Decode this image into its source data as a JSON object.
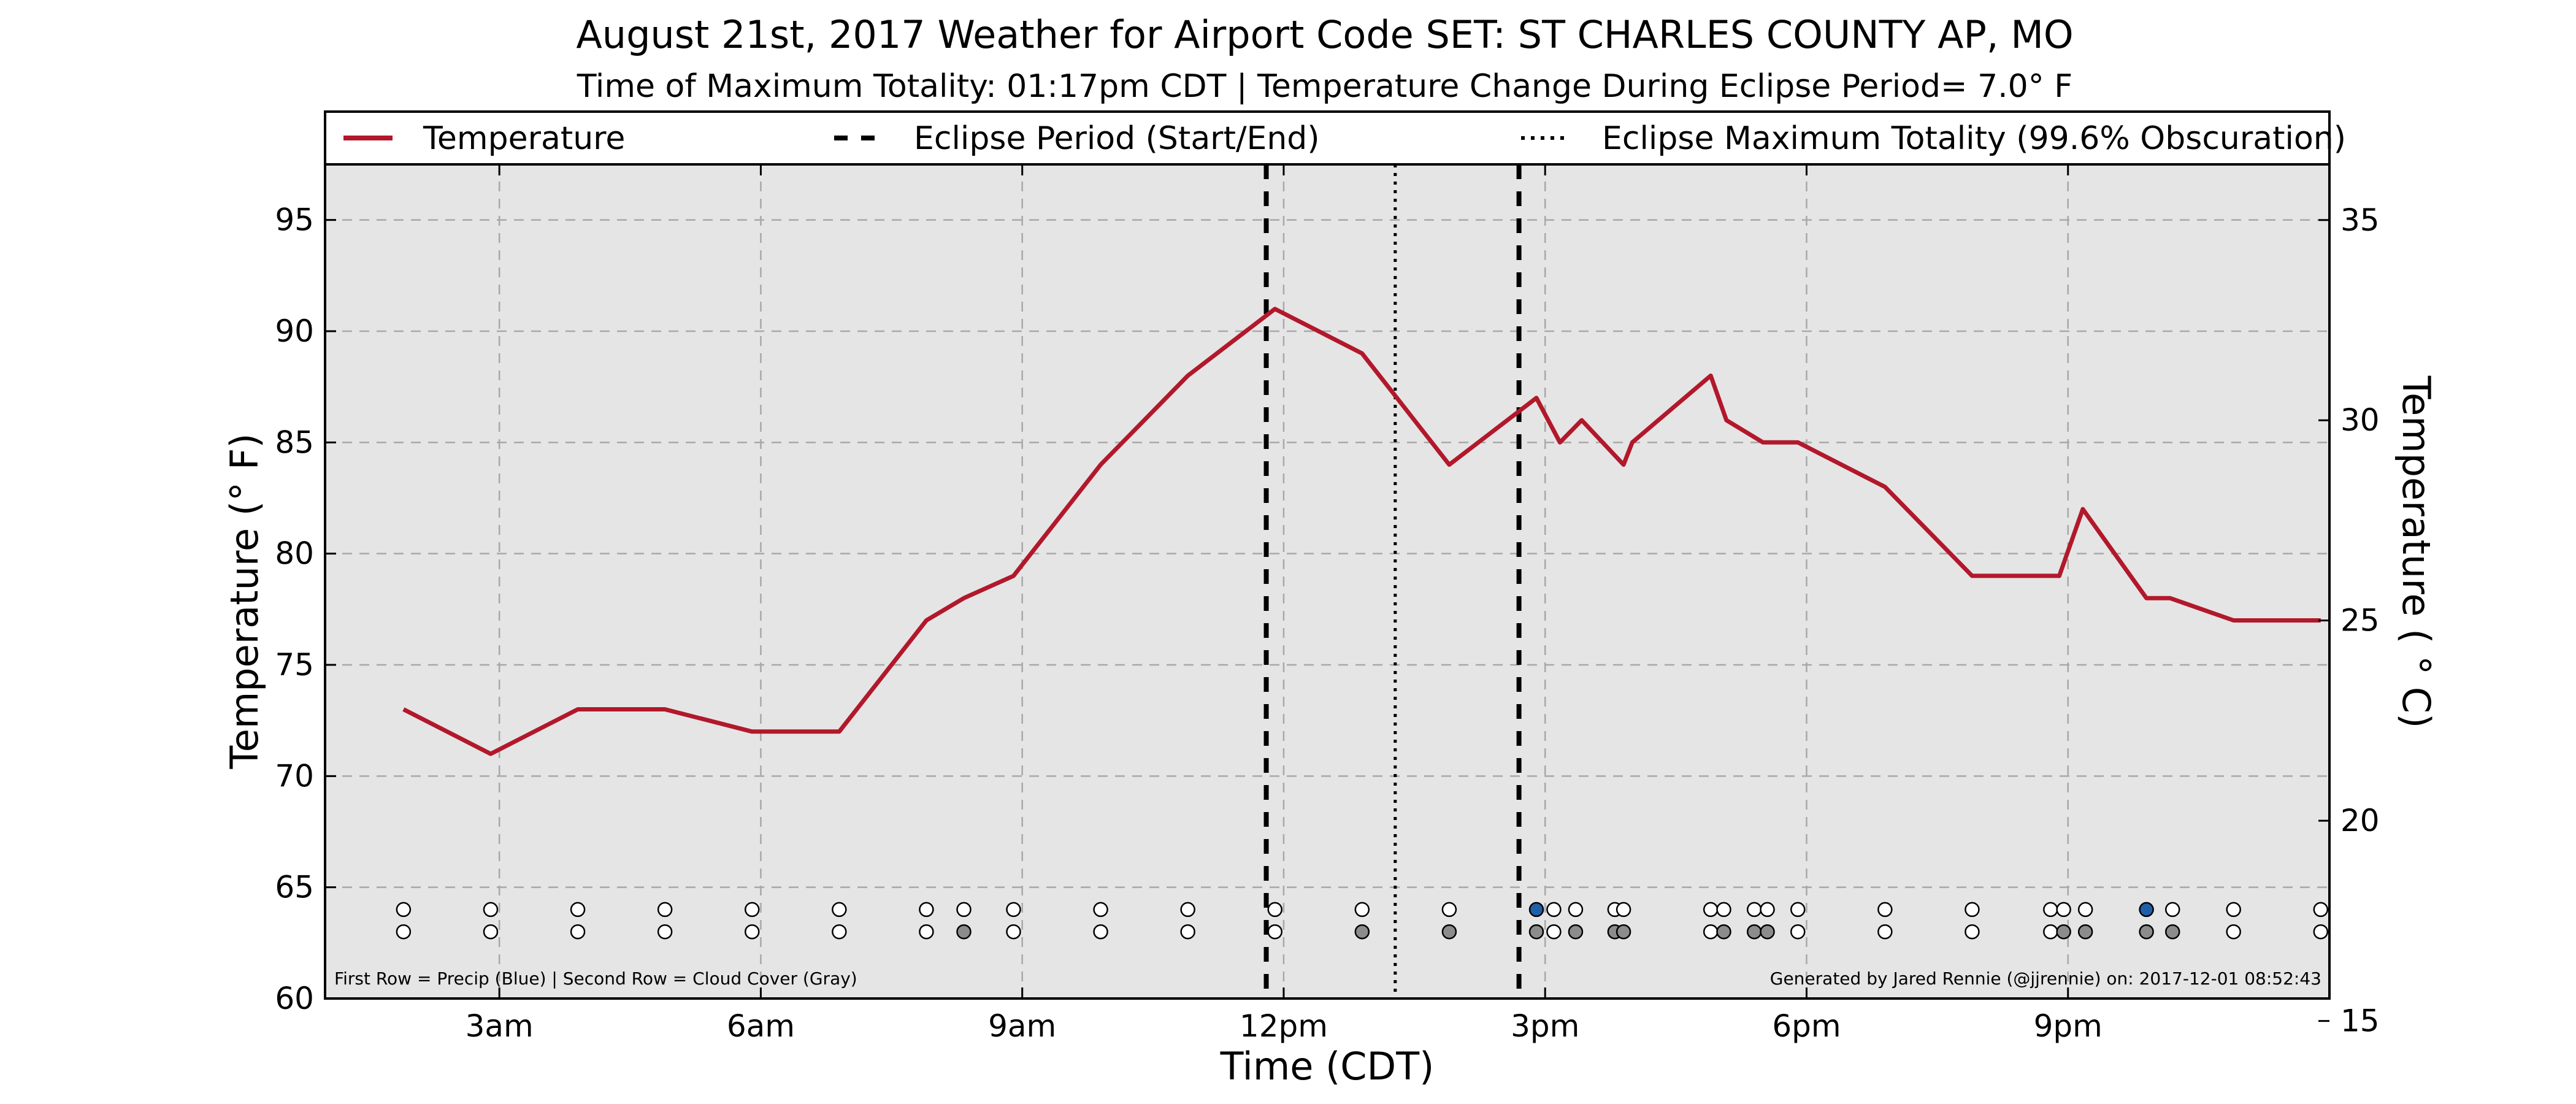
{
  "chart_data": {
    "type": "line",
    "title": "August 21st, 2017 Weather for Airport Code SET: ST CHARLES COUNTY AP, MO",
    "subtitle": "Time of Maximum Totality: 01:17pm CDT | Temperature Change During Eclipse Period= 7.0° F",
    "xlabel": "Time (CDT)",
    "ylabel": "Temperature (° F)",
    "ylabel_right": "Temperature ( ° C)",
    "xlim_hours": [
      1,
      24
    ],
    "ylim": [
      60,
      97.5
    ],
    "ylim_right": [
      15.56,
      36.39
    ],
    "grid": true,
    "legend_placement": "top (above plot, full width)",
    "x_ticks": [
      {
        "hour": 3,
        "label": "3am"
      },
      {
        "hour": 6,
        "label": "6am"
      },
      {
        "hour": 9,
        "label": "9am"
      },
      {
        "hour": 12,
        "label": "12pm"
      },
      {
        "hour": 15,
        "label": "3pm"
      },
      {
        "hour": 18,
        "label": "6pm"
      },
      {
        "hour": 21,
        "label": "9pm"
      }
    ],
    "y_ticks": [
      60,
      65,
      70,
      75,
      80,
      85,
      90,
      95
    ],
    "y_ticks_right": [
      15,
      20,
      25,
      30,
      35
    ],
    "series": [
      {
        "name": "Temperature",
        "color": "#b2182b",
        "x": [
          "01:54",
          "02:54",
          "03:54",
          "04:54",
          "05:54",
          "06:54",
          "07:54",
          "08:20",
          "08:54",
          "09:54",
          "10:54",
          "11:54",
          "12:54",
          "13:54",
          "14:54",
          "15:10",
          "15:25",
          "15:54",
          "16:00",
          "16:54",
          "17:05",
          "17:30",
          "17:54",
          "18:54",
          "19:54",
          "20:54",
          "21:10",
          "21:54",
          "22:10",
          "22:54",
          "23:54"
        ],
        "hours": [
          1.9,
          2.9,
          3.9,
          4.9,
          5.9,
          6.9,
          7.9,
          8.33,
          8.9,
          9.9,
          10.9,
          11.9,
          12.9,
          13.9,
          14.9,
          15.17,
          15.42,
          15.9,
          16.0,
          16.9,
          17.08,
          17.5,
          17.9,
          18.9,
          19.9,
          20.9,
          21.17,
          21.9,
          22.17,
          22.9,
          23.9
        ],
        "values": [
          73,
          71,
          73,
          73,
          72,
          72,
          77,
          78,
          79,
          84,
          88,
          91,
          89,
          84,
          87,
          85,
          86,
          84,
          85,
          88,
          86,
          85,
          85,
          83,
          79,
          79,
          82,
          78,
          78,
          77,
          77
        ]
      }
    ],
    "eclipse": {
      "legend_start_end": "Eclipse Period (Start/End)",
      "legend_max": "Eclipse Maximum Totality (99.6% Obscuration)",
      "start_hour": 11.8,
      "end_hour": 14.7,
      "max_hour": 13.28
    },
    "obs_rows": {
      "precip_label_y": 64,
      "cloud_label_y": 63,
      "precip_color": "#1f5fa8",
      "cloud_color": "#8c8c8c",
      "empty_color": "#ffffff",
      "precip": [
        {
          "hour": 1.9,
          "v": 0
        },
        {
          "hour": 2.9,
          "v": 0
        },
        {
          "hour": 3.9,
          "v": 0
        },
        {
          "hour": 4.9,
          "v": 0
        },
        {
          "hour": 5.9,
          "v": 0
        },
        {
          "hour": 6.9,
          "v": 0
        },
        {
          "hour": 7.9,
          "v": 0
        },
        {
          "hour": 8.33,
          "v": 0
        },
        {
          "hour": 8.9,
          "v": 0
        },
        {
          "hour": 9.9,
          "v": 0
        },
        {
          "hour": 10.9,
          "v": 0
        },
        {
          "hour": 11.9,
          "v": 0
        },
        {
          "hour": 12.9,
          "v": 0
        },
        {
          "hour": 13.9,
          "v": 0
        },
        {
          "hour": 14.9,
          "v": 1
        },
        {
          "hour": 15.1,
          "v": 0
        },
        {
          "hour": 15.35,
          "v": 0
        },
        {
          "hour": 15.8,
          "v": 0
        },
        {
          "hour": 15.9,
          "v": 0
        },
        {
          "hour": 16.9,
          "v": 0
        },
        {
          "hour": 17.05,
          "v": 0
        },
        {
          "hour": 17.4,
          "v": 0
        },
        {
          "hour": 17.55,
          "v": 0
        },
        {
          "hour": 17.9,
          "v": 0
        },
        {
          "hour": 18.9,
          "v": 0
        },
        {
          "hour": 19.9,
          "v": 0
        },
        {
          "hour": 20.8,
          "v": 0
        },
        {
          "hour": 20.95,
          "v": 0
        },
        {
          "hour": 21.2,
          "v": 0
        },
        {
          "hour": 21.9,
          "v": 1
        },
        {
          "hour": 22.2,
          "v": 0
        },
        {
          "hour": 22.9,
          "v": 0
        },
        {
          "hour": 23.9,
          "v": 0
        }
      ],
      "cloud": [
        {
          "hour": 1.9,
          "v": 0
        },
        {
          "hour": 2.9,
          "v": 0
        },
        {
          "hour": 3.9,
          "v": 0
        },
        {
          "hour": 4.9,
          "v": 0
        },
        {
          "hour": 5.9,
          "v": 0
        },
        {
          "hour": 6.9,
          "v": 0
        },
        {
          "hour": 7.9,
          "v": 0
        },
        {
          "hour": 8.33,
          "v": 1
        },
        {
          "hour": 8.9,
          "v": 0
        },
        {
          "hour": 9.9,
          "v": 0
        },
        {
          "hour": 10.9,
          "v": 0
        },
        {
          "hour": 11.9,
          "v": 0
        },
        {
          "hour": 12.9,
          "v": 1
        },
        {
          "hour": 13.9,
          "v": 1
        },
        {
          "hour": 14.9,
          "v": 1
        },
        {
          "hour": 15.1,
          "v": 0
        },
        {
          "hour": 15.35,
          "v": 1
        },
        {
          "hour": 15.8,
          "v": 1
        },
        {
          "hour": 15.9,
          "v": 1
        },
        {
          "hour": 16.9,
          "v": 0
        },
        {
          "hour": 17.05,
          "v": 1
        },
        {
          "hour": 17.4,
          "v": 1
        },
        {
          "hour": 17.55,
          "v": 1
        },
        {
          "hour": 17.9,
          "v": 0
        },
        {
          "hour": 18.9,
          "v": 0
        },
        {
          "hour": 19.9,
          "v": 0
        },
        {
          "hour": 20.8,
          "v": 0
        },
        {
          "hour": 20.95,
          "v": 1
        },
        {
          "hour": 21.2,
          "v": 1
        },
        {
          "hour": 21.9,
          "v": 1
        },
        {
          "hour": 22.2,
          "v": 1
        },
        {
          "hour": 22.9,
          "v": 0
        },
        {
          "hour": 23.9,
          "v": 0
        }
      ]
    },
    "annotations": {
      "bottom_left": "First Row = Precip (Blue) | Second Row = Cloud Cover (Gray)",
      "bottom_right": "Generated by Jared Rennie (@jjrennie) on: 2017-12-01 08:52:43"
    },
    "colors": {
      "plot_background": "#e5e5e5",
      "grid": "#a8a8a8",
      "temperature_line": "#b2182b"
    }
  }
}
